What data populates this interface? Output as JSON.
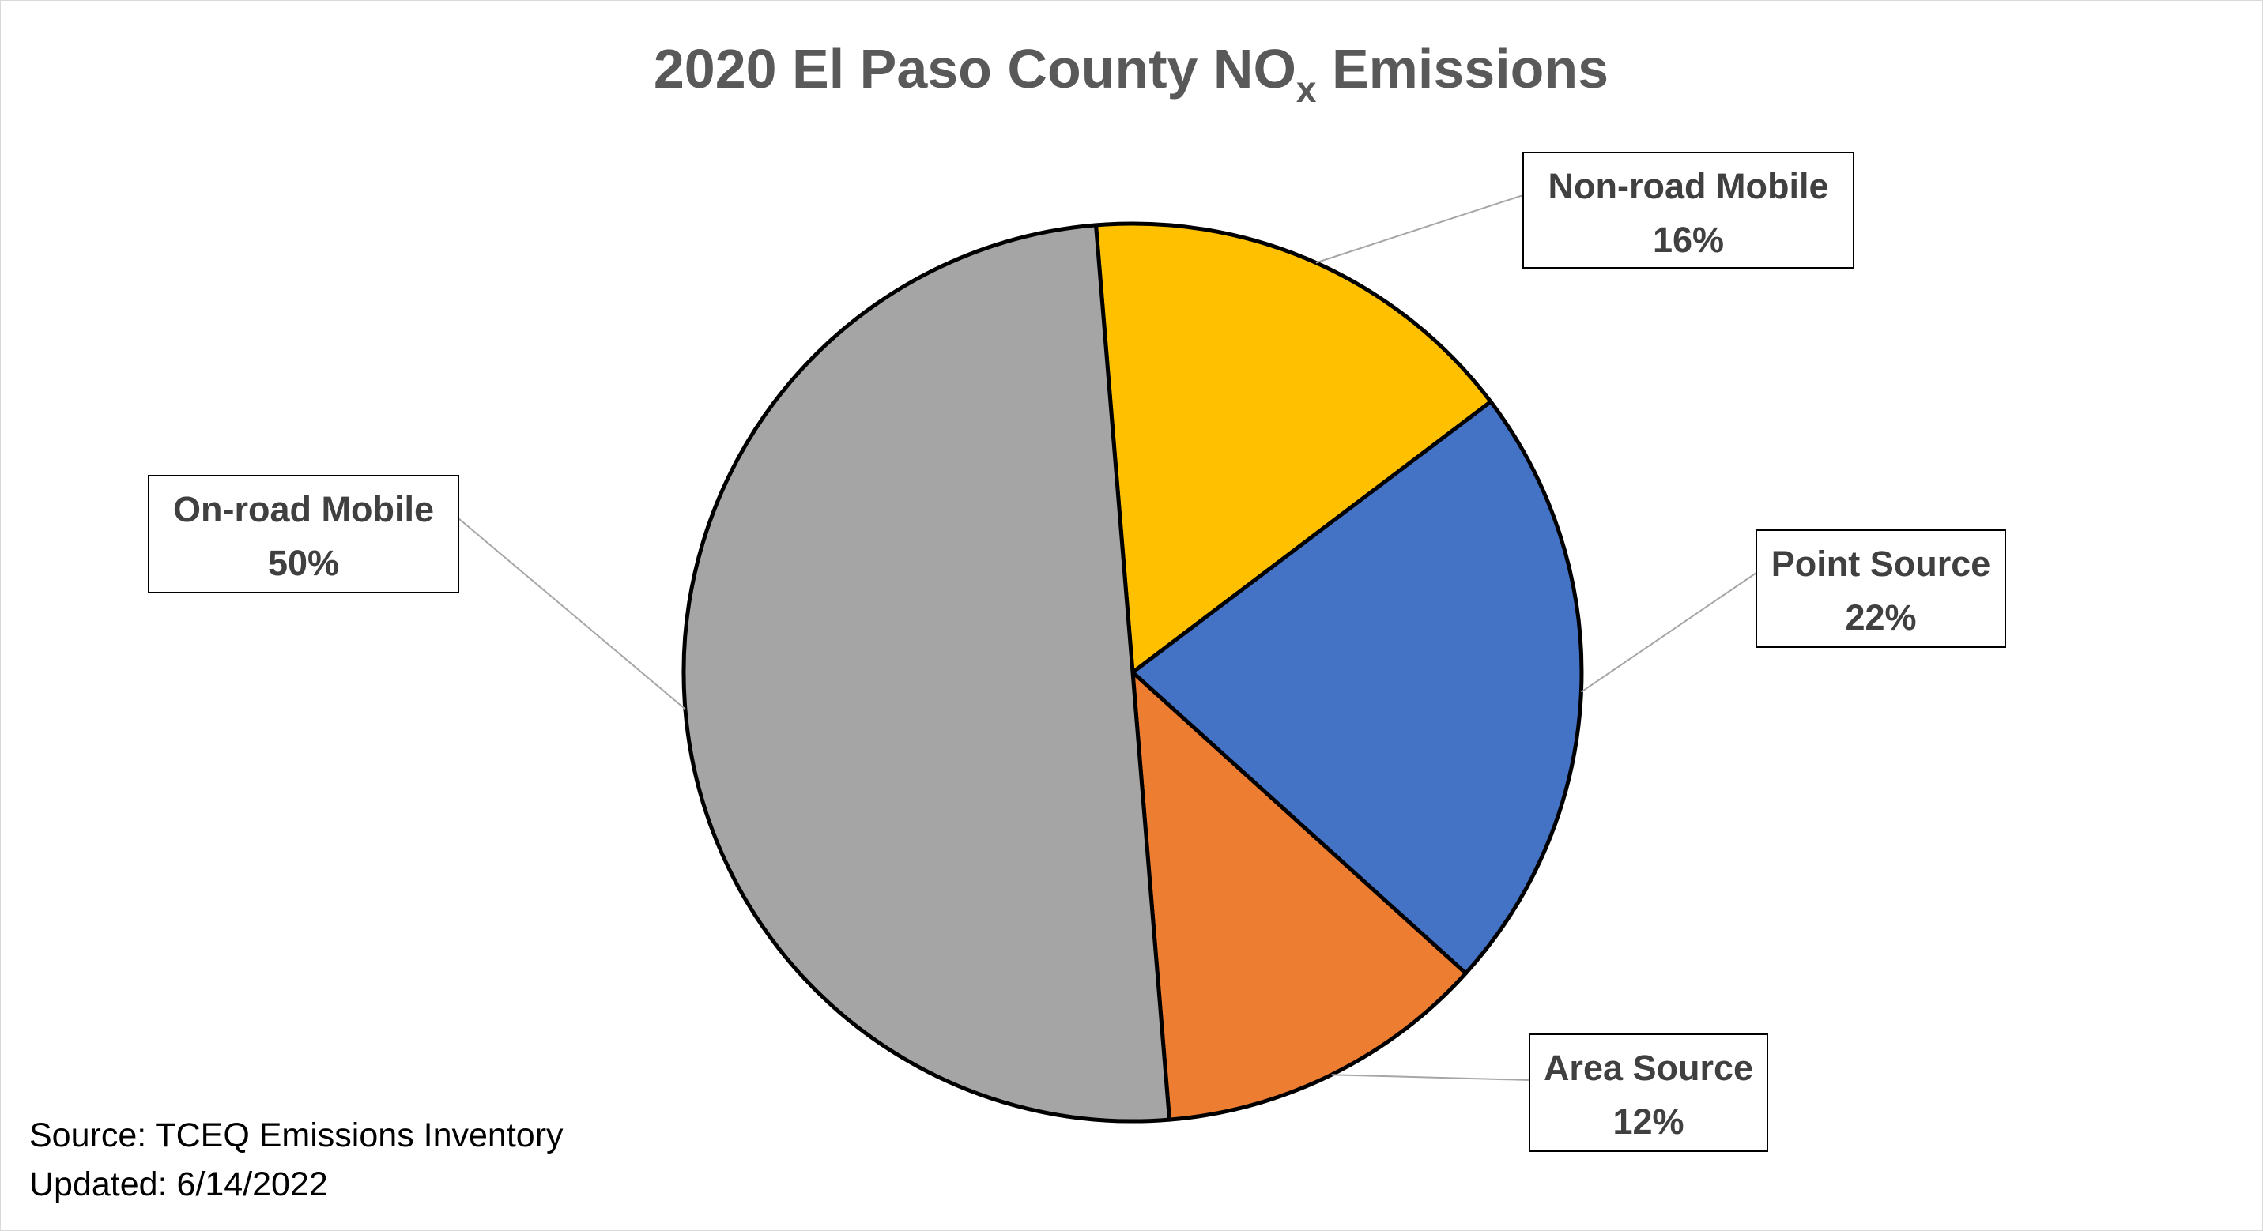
{
  "chart_data": {
    "type": "pie",
    "title": "2020 El Paso County NO",
    "title_subscript": "x",
    "title_suffix": " Emissions",
    "categories": [
      "Non-road Mobile",
      "Point Source",
      "Area Source",
      "On-road Mobile"
    ],
    "values": [
      16,
      22,
      12,
      50
    ],
    "value_labels": [
      "16%",
      "22%",
      "12%",
      "50%"
    ],
    "colors": [
      "#FFC000",
      "#4472C4",
      "#ED7D31",
      "#A5A5A5"
    ],
    "start_angle_deg": -4.7,
    "direction": "clockwise",
    "legend": "none (data labels with leader lines)"
  },
  "footer": {
    "source": "Source: TCEQ Emissions Inventory",
    "updated": "Updated: 6/14/2022"
  }
}
